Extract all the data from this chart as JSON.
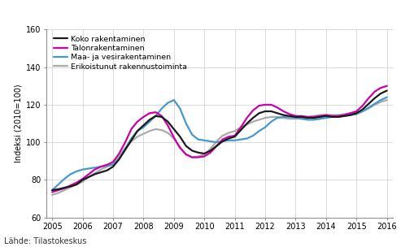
{
  "title": "",
  "source_text": "Lähde: Tilastokeskus",
  "ylabel": "Indeksi (2010=100)",
  "ylim": [
    60,
    160
  ],
  "yticks": [
    60,
    80,
    100,
    120,
    140,
    160
  ],
  "xlim": [
    2004.8,
    2016.2
  ],
  "xticks": [
    2005,
    2006,
    2007,
    2008,
    2009,
    2010,
    2011,
    2012,
    2013,
    2014,
    2015,
    2016
  ],
  "legend_labels": [
    "Koko rakentaminen",
    "Talonrakentaminen",
    "Maa- ja vesirakentaminen",
    "Erikoistunut rakennustoiminta"
  ],
  "colors": [
    "#1a1a1a",
    "#cc00aa",
    "#4499cc",
    "#aaaaaa"
  ],
  "linewidths": [
    1.6,
    1.6,
    1.6,
    1.6
  ],
  "series": {
    "koko": [
      [
        2005.0,
        74.5
      ],
      [
        2005.2,
        75.0
      ],
      [
        2005.4,
        75.8
      ],
      [
        2005.6,
        76.5
      ],
      [
        2005.8,
        77.5
      ],
      [
        2006.0,
        80.0
      ],
      [
        2006.2,
        81.5
      ],
      [
        2006.4,
        83.0
      ],
      [
        2006.6,
        84.0
      ],
      [
        2006.8,
        85.0
      ],
      [
        2007.0,
        87.0
      ],
      [
        2007.2,
        91.0
      ],
      [
        2007.4,
        96.0
      ],
      [
        2007.6,
        101.0
      ],
      [
        2007.8,
        106.0
      ],
      [
        2008.0,
        109.0
      ],
      [
        2008.2,
        112.0
      ],
      [
        2008.4,
        114.0
      ],
      [
        2008.6,
        113.5
      ],
      [
        2008.8,
        111.0
      ],
      [
        2009.0,
        107.0
      ],
      [
        2009.2,
        103.0
      ],
      [
        2009.4,
        98.0
      ],
      [
        2009.6,
        95.5
      ],
      [
        2009.8,
        94.5
      ],
      [
        2010.0,
        94.0
      ],
      [
        2010.2,
        95.5
      ],
      [
        2010.4,
        98.0
      ],
      [
        2010.6,
        100.5
      ],
      [
        2010.8,
        102.0
      ],
      [
        2011.0,
        103.0
      ],
      [
        2011.2,
        106.5
      ],
      [
        2011.4,
        110.0
      ],
      [
        2011.6,
        113.0
      ],
      [
        2011.8,
        115.5
      ],
      [
        2012.0,
        116.5
      ],
      [
        2012.2,
        116.5
      ],
      [
        2012.4,
        115.5
      ],
      [
        2012.6,
        114.5
      ],
      [
        2012.8,
        114.0
      ],
      [
        2013.0,
        113.5
      ],
      [
        2013.2,
        113.5
      ],
      [
        2013.4,
        113.0
      ],
      [
        2013.6,
        113.0
      ],
      [
        2013.8,
        113.5
      ],
      [
        2014.0,
        114.0
      ],
      [
        2014.2,
        113.5
      ],
      [
        2014.4,
        113.5
      ],
      [
        2014.6,
        114.0
      ],
      [
        2014.8,
        114.5
      ],
      [
        2015.0,
        115.5
      ],
      [
        2015.2,
        117.5
      ],
      [
        2015.4,
        120.5
      ],
      [
        2015.6,
        123.5
      ],
      [
        2015.8,
        126.0
      ],
      [
        2016.0,
        127.5
      ]
    ],
    "talonrak": [
      [
        2005.0,
        73.5
      ],
      [
        2005.2,
        74.5
      ],
      [
        2005.4,
        75.5
      ],
      [
        2005.6,
        77.0
      ],
      [
        2005.8,
        78.5
      ],
      [
        2006.0,
        80.5
      ],
      [
        2006.2,
        83.0
      ],
      [
        2006.4,
        85.5
      ],
      [
        2006.6,
        87.0
      ],
      [
        2006.8,
        88.0
      ],
      [
        2007.0,
        89.5
      ],
      [
        2007.2,
        94.0
      ],
      [
        2007.4,
        100.0
      ],
      [
        2007.6,
        107.0
      ],
      [
        2007.8,
        111.0
      ],
      [
        2008.0,
        113.5
      ],
      [
        2008.2,
        115.5
      ],
      [
        2008.4,
        116.0
      ],
      [
        2008.6,
        114.0
      ],
      [
        2008.8,
        109.0
      ],
      [
        2009.0,
        102.5
      ],
      [
        2009.2,
        97.0
      ],
      [
        2009.4,
        93.5
      ],
      [
        2009.6,
        92.0
      ],
      [
        2009.8,
        92.0
      ],
      [
        2010.0,
        92.5
      ],
      [
        2010.2,
        94.5
      ],
      [
        2010.4,
        98.0
      ],
      [
        2010.6,
        101.5
      ],
      [
        2010.8,
        103.0
      ],
      [
        2011.0,
        103.5
      ],
      [
        2011.2,
        108.0
      ],
      [
        2011.4,
        113.0
      ],
      [
        2011.6,
        117.0
      ],
      [
        2011.8,
        119.5
      ],
      [
        2012.0,
        120.0
      ],
      [
        2012.2,
        120.0
      ],
      [
        2012.4,
        118.5
      ],
      [
        2012.6,
        116.5
      ],
      [
        2012.8,
        115.0
      ],
      [
        2013.0,
        114.0
      ],
      [
        2013.2,
        114.0
      ],
      [
        2013.4,
        113.5
      ],
      [
        2013.6,
        113.5
      ],
      [
        2013.8,
        114.0
      ],
      [
        2014.0,
        114.5
      ],
      [
        2014.2,
        114.0
      ],
      [
        2014.4,
        114.0
      ],
      [
        2014.6,
        114.5
      ],
      [
        2014.8,
        115.5
      ],
      [
        2015.0,
        116.5
      ],
      [
        2015.2,
        119.5
      ],
      [
        2015.4,
        123.5
      ],
      [
        2015.6,
        127.0
      ],
      [
        2015.8,
        129.0
      ],
      [
        2016.0,
        130.0
      ]
    ],
    "maajavet": [
      [
        2005.0,
        74.5
      ],
      [
        2005.2,
        77.5
      ],
      [
        2005.4,
        80.5
      ],
      [
        2005.6,
        83.0
      ],
      [
        2005.8,
        84.5
      ],
      [
        2006.0,
        85.5
      ],
      [
        2006.2,
        86.0
      ],
      [
        2006.4,
        86.5
      ],
      [
        2006.6,
        87.0
      ],
      [
        2006.8,
        87.5
      ],
      [
        2007.0,
        88.0
      ],
      [
        2007.2,
        91.0
      ],
      [
        2007.4,
        96.5
      ],
      [
        2007.6,
        102.0
      ],
      [
        2007.8,
        106.0
      ],
      [
        2008.0,
        108.0
      ],
      [
        2008.2,
        111.0
      ],
      [
        2008.4,
        114.0
      ],
      [
        2008.6,
        118.0
      ],
      [
        2008.8,
        121.0
      ],
      [
        2009.0,
        122.5
      ],
      [
        2009.2,
        118.0
      ],
      [
        2009.4,
        110.0
      ],
      [
        2009.6,
        104.0
      ],
      [
        2009.8,
        101.5
      ],
      [
        2010.0,
        101.0
      ],
      [
        2010.2,
        100.5
      ],
      [
        2010.4,
        100.0
      ],
      [
        2010.6,
        100.5
      ],
      [
        2010.8,
        101.0
      ],
      [
        2011.0,
        101.0
      ],
      [
        2011.2,
        101.5
      ],
      [
        2011.4,
        102.0
      ],
      [
        2011.6,
        103.5
      ],
      [
        2011.8,
        106.0
      ],
      [
        2012.0,
        108.0
      ],
      [
        2012.2,
        111.0
      ],
      [
        2012.4,
        113.0
      ],
      [
        2012.6,
        113.5
      ],
      [
        2012.8,
        113.5
      ],
      [
        2013.0,
        113.0
      ],
      [
        2013.2,
        112.5
      ],
      [
        2013.4,
        112.0
      ],
      [
        2013.6,
        112.0
      ],
      [
        2013.8,
        112.5
      ],
      [
        2014.0,
        113.0
      ],
      [
        2014.2,
        113.5
      ],
      [
        2014.4,
        113.5
      ],
      [
        2014.6,
        114.0
      ],
      [
        2014.8,
        114.5
      ],
      [
        2015.0,
        115.0
      ],
      [
        2015.2,
        116.5
      ],
      [
        2015.4,
        118.5
      ],
      [
        2015.6,
        120.5
      ],
      [
        2015.8,
        122.5
      ],
      [
        2016.0,
        124.0
      ]
    ],
    "erikoistunut": [
      [
        2005.0,
        72.0
      ],
      [
        2005.2,
        73.0
      ],
      [
        2005.4,
        74.5
      ],
      [
        2005.6,
        76.0
      ],
      [
        2005.8,
        77.5
      ],
      [
        2006.0,
        79.0
      ],
      [
        2006.2,
        81.5
      ],
      [
        2006.4,
        83.5
      ],
      [
        2006.6,
        85.5
      ],
      [
        2006.8,
        87.0
      ],
      [
        2007.0,
        88.5
      ],
      [
        2007.2,
        92.5
      ],
      [
        2007.4,
        97.0
      ],
      [
        2007.6,
        100.5
      ],
      [
        2007.8,
        103.0
      ],
      [
        2008.0,
        104.5
      ],
      [
        2008.2,
        106.0
      ],
      [
        2008.4,
        107.0
      ],
      [
        2008.6,
        106.5
      ],
      [
        2008.8,
        105.0
      ],
      [
        2009.0,
        102.0
      ],
      [
        2009.2,
        97.5
      ],
      [
        2009.4,
        93.5
      ],
      [
        2009.6,
        92.0
      ],
      [
        2009.8,
        92.5
      ],
      [
        2010.0,
        93.5
      ],
      [
        2010.2,
        96.5
      ],
      [
        2010.4,
        100.5
      ],
      [
        2010.6,
        103.5
      ],
      [
        2010.8,
        105.0
      ],
      [
        2011.0,
        106.0
      ],
      [
        2011.2,
        108.0
      ],
      [
        2011.4,
        109.5
      ],
      [
        2011.6,
        111.0
      ],
      [
        2011.8,
        112.0
      ],
      [
        2012.0,
        113.0
      ],
      [
        2012.2,
        113.5
      ],
      [
        2012.4,
        113.5
      ],
      [
        2012.6,
        113.0
      ],
      [
        2012.8,
        112.5
      ],
      [
        2013.0,
        112.5
      ],
      [
        2013.2,
        113.0
      ],
      [
        2013.4,
        113.5
      ],
      [
        2013.6,
        114.0
      ],
      [
        2013.8,
        114.5
      ],
      [
        2014.0,
        114.5
      ],
      [
        2014.2,
        114.5
      ],
      [
        2014.4,
        114.5
      ],
      [
        2014.6,
        115.0
      ],
      [
        2014.8,
        115.5
      ],
      [
        2015.0,
        115.5
      ],
      [
        2015.2,
        116.5
      ],
      [
        2015.4,
        118.0
      ],
      [
        2015.6,
        120.0
      ],
      [
        2015.8,
        121.5
      ],
      [
        2016.0,
        122.5
      ]
    ]
  }
}
